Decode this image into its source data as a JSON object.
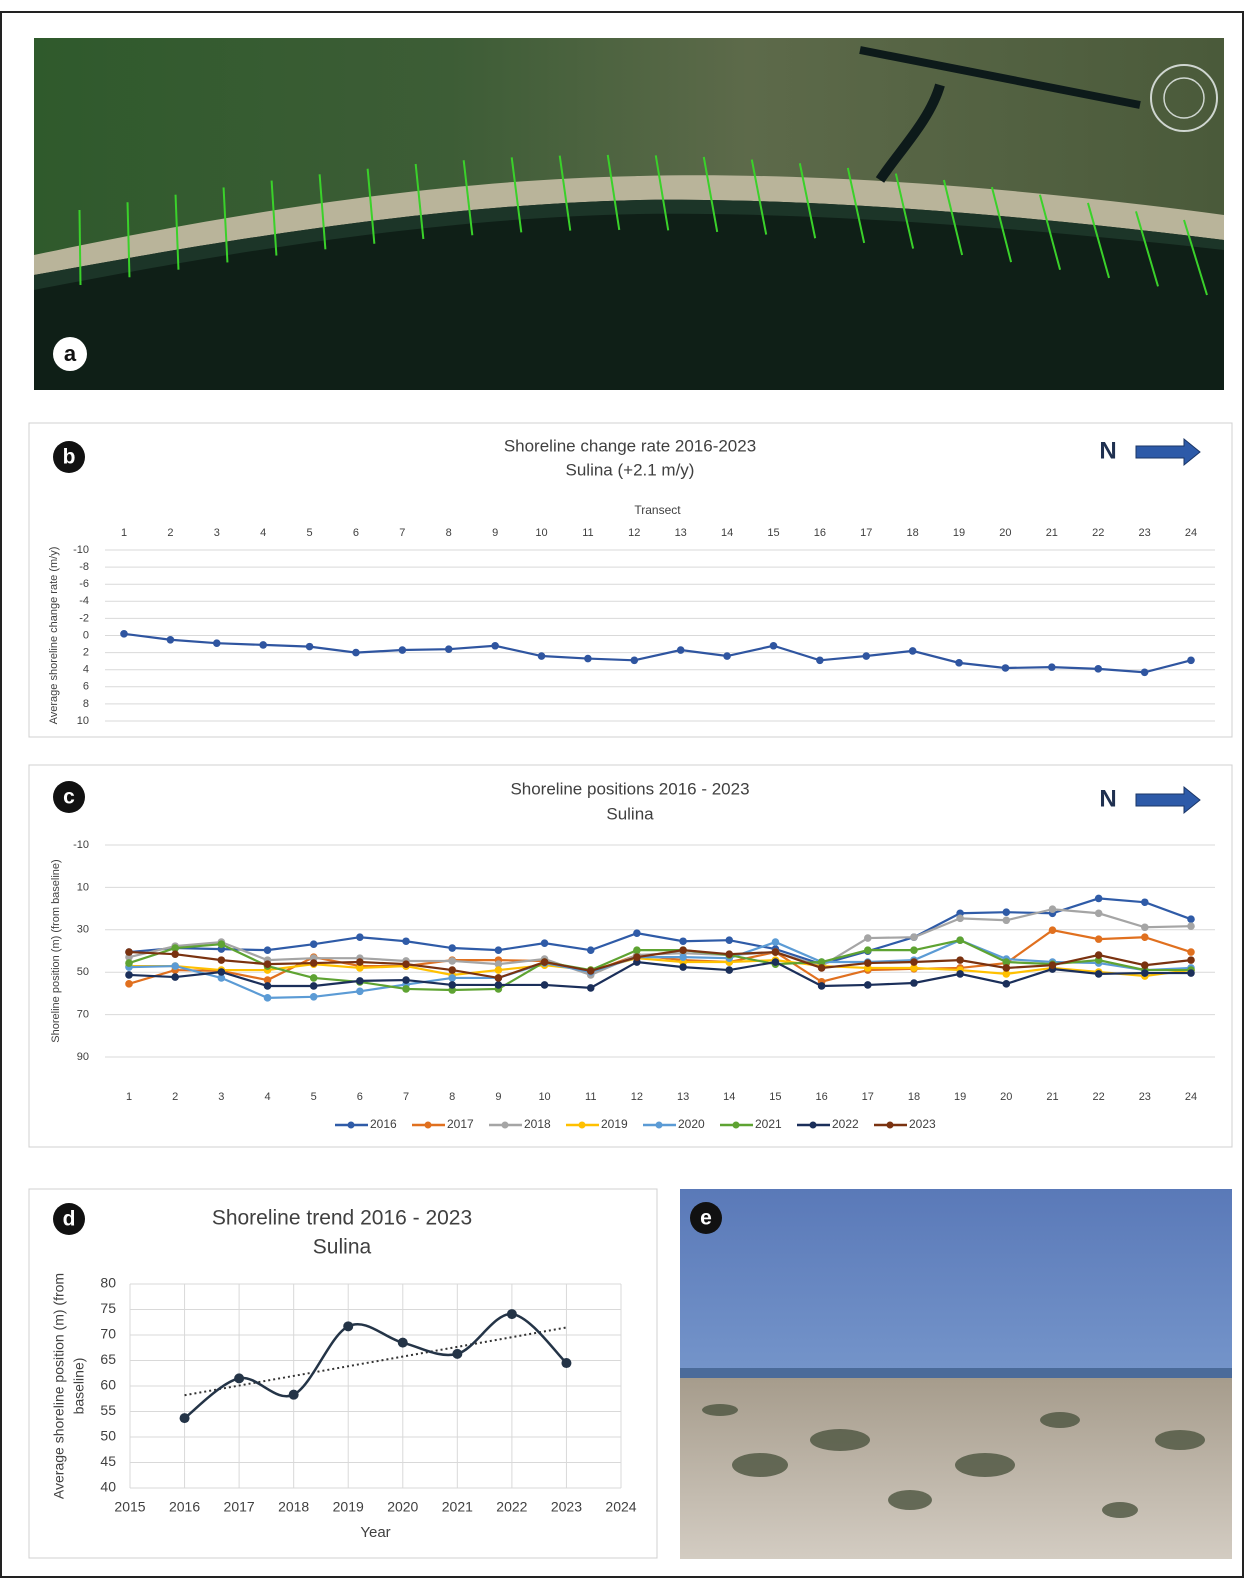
{
  "images": [
    {
      "label": "a"
    },
    {
      "label": "e"
    }
  ],
  "chart_data": [
    {
      "type": "line",
      "panel_label": "b",
      "title": "Shoreline change rate 2016-2023",
      "subtitle": "Sulina (+2.1 m/y)",
      "north_label": "N",
      "xlabel": "Transect",
      "ylabel": "Average shoreline change rate (m/y)",
      "categories": [
        1,
        2,
        3,
        4,
        5,
        6,
        7,
        8,
        9,
        10,
        11,
        12,
        13,
        14,
        15,
        16,
        17,
        18,
        19,
        20,
        21,
        22,
        23,
        24
      ],
      "series": [
        {
          "name": "Average shoreline change rate",
          "color": "#2f55a0",
          "values": [
            -0.2,
            0.5,
            0.9,
            1.1,
            1.3,
            2.0,
            1.7,
            1.6,
            1.2,
            2.4,
            2.7,
            2.9,
            1.7,
            2.4,
            1.2,
            2.9,
            2.4,
            1.8,
            3.2,
            3.8,
            3.7,
            3.9,
            4.3,
            2.9
          ]
        }
      ],
      "ylim": [
        -10,
        10
      ],
      "y_inverted": true,
      "yticks": [
        -10,
        -8,
        -6,
        -4,
        -2,
        0,
        2,
        4,
        6,
        8,
        10
      ],
      "grid": true,
      "xaxis_position": "top",
      "legend": false
    },
    {
      "type": "line",
      "panel_label": "c",
      "title": "Shoreline positions 2016 - 2023",
      "subtitle": "Sulina",
      "north_label": "N",
      "ylabel": "Shoreline position (m) (from baseline)",
      "categories": [
        1,
        2,
        3,
        4,
        5,
        6,
        7,
        8,
        9,
        10,
        11,
        12,
        13,
        14,
        15,
        16,
        17,
        18,
        19,
        20,
        21,
        22,
        23,
        24
      ],
      "series": [
        {
          "name": "2016",
          "color": "#2f5ba7",
          "values": [
            40.5,
            38.6,
            39.1,
            39.6,
            36.8,
            33.5,
            35.4,
            38.6,
            39.6,
            36.3,
            39.6,
            31.6,
            35.4,
            34.9,
            39.1,
            46.2,
            40.1,
            33.5,
            22.2,
            21.7,
            22.2,
            15.2,
            17.0,
            25.0
          ]
        },
        {
          "name": "2017",
          "color": "#e0701f",
          "values": [
            55.5,
            49.0,
            49.4,
            53.7,
            42.9,
            47.1,
            47.1,
            44.3,
            44.3,
            44.7,
            49.9,
            41.9,
            44.3,
            45.2,
            40.5,
            54.5,
            49.0,
            48.4,
            48.0,
            45.7,
            30.2,
            34.4,
            33.5,
            40.5
          ]
        },
        {
          "name": "2018",
          "color": "#a5a5a5",
          "values": [
            42.9,
            37.7,
            35.8,
            44.3,
            43.4,
            43.4,
            44.7,
            44.7,
            46.2,
            43.8,
            51.3,
            41.9,
            41.0,
            41.9,
            40.5,
            47.1,
            33.9,
            33.5,
            24.6,
            25.5,
            20.3,
            22.2,
            28.8,
            28.3
          ]
        },
        {
          "name": "2019",
          "color": "#ffc000",
          "values": [
            47.1,
            47.1,
            49.0,
            49.0,
            46.2,
            48.0,
            47.1,
            51.3,
            49.0,
            46.7,
            49.0,
            43.4,
            45.2,
            45.2,
            44.3,
            47.1,
            48.0,
            48.0,
            49.0,
            50.8,
            48.0,
            49.9,
            51.8,
            49.0
          ]
        },
        {
          "name": "2020",
          "color": "#5b9bd5",
          "values": [
            47.6,
            47.1,
            52.7,
            62.1,
            61.6,
            59.0,
            55.8,
            52.7,
            52.7,
            45.7,
            49.9,
            42.9,
            42.9,
            43.4,
            35.8,
            45.2,
            45.2,
            44.3,
            34.9,
            43.8,
            45.2,
            45.7,
            49.0,
            48.0
          ]
        },
        {
          "name": "2021",
          "color": "#5ea332",
          "values": [
            45.7,
            38.6,
            36.8,
            47.1,
            52.7,
            54.6,
            57.9,
            58.4,
            57.9,
            45.2,
            49.0,
            39.6,
            39.6,
            41.9,
            46.2,
            45.2,
            39.6,
            39.6,
            34.9,
            45.2,
            46.2,
            44.3,
            49.0,
            49.0
          ]
        },
        {
          "name": "2022",
          "color": "#1b2f5a",
          "values": [
            51.3,
            52.3,
            49.9,
            56.5,
            56.5,
            54.1,
            53.7,
            56.0,
            56.0,
            56.0,
            57.4,
            45.2,
            47.6,
            49.0,
            45.2,
            56.5,
            56.0,
            55.1,
            50.8,
            55.5,
            48.5,
            50.8,
            50.4,
            50.4
          ]
        },
        {
          "name": "2023",
          "color": "#7a3210",
          "values": [
            40.5,
            41.5,
            44.3,
            46.2,
            45.7,
            45.2,
            46.2,
            49.0,
            52.7,
            45.2,
            49.4,
            42.9,
            39.6,
            41.5,
            40.5,
            48.0,
            45.7,
            45.2,
            44.3,
            48.0,
            46.7,
            41.9,
            46.7,
            44.3
          ]
        }
      ],
      "ylim": [
        -10,
        90
      ],
      "y_inverted": true,
      "yticks": [
        -10,
        10,
        30,
        50,
        70,
        90
      ],
      "grid": true,
      "xaxis_position": "bottom",
      "legend": "bottom"
    },
    {
      "type": "line",
      "panel_label": "d",
      "title": "Shoreline trend 2016 - 2023",
      "subtitle": "Sulina",
      "xlabel": "Year",
      "ylabel": [
        "Average shoreline position (m) (from",
        "baseline)"
      ],
      "x": [
        2016,
        2017,
        2018,
        2019,
        2020,
        2021,
        2022,
        2023
      ],
      "series": [
        {
          "name": "Average shoreline position",
          "color": "#243447",
          "values": [
            53.7,
            61.5,
            58.3,
            71.7,
            68.5,
            66.3,
            74.1,
            64.5
          ]
        }
      ],
      "xlim": [
        2015,
        2024
      ],
      "xticks": [
        2015,
        2016,
        2017,
        2018,
        2019,
        2020,
        2021,
        2022,
        2023,
        2024
      ],
      "ylim": [
        40,
        80
      ],
      "yticks": [
        40,
        45,
        50,
        55,
        60,
        65,
        70,
        75,
        80
      ],
      "grid": true,
      "smooth": true,
      "trendline": "linear",
      "legend": false
    }
  ]
}
